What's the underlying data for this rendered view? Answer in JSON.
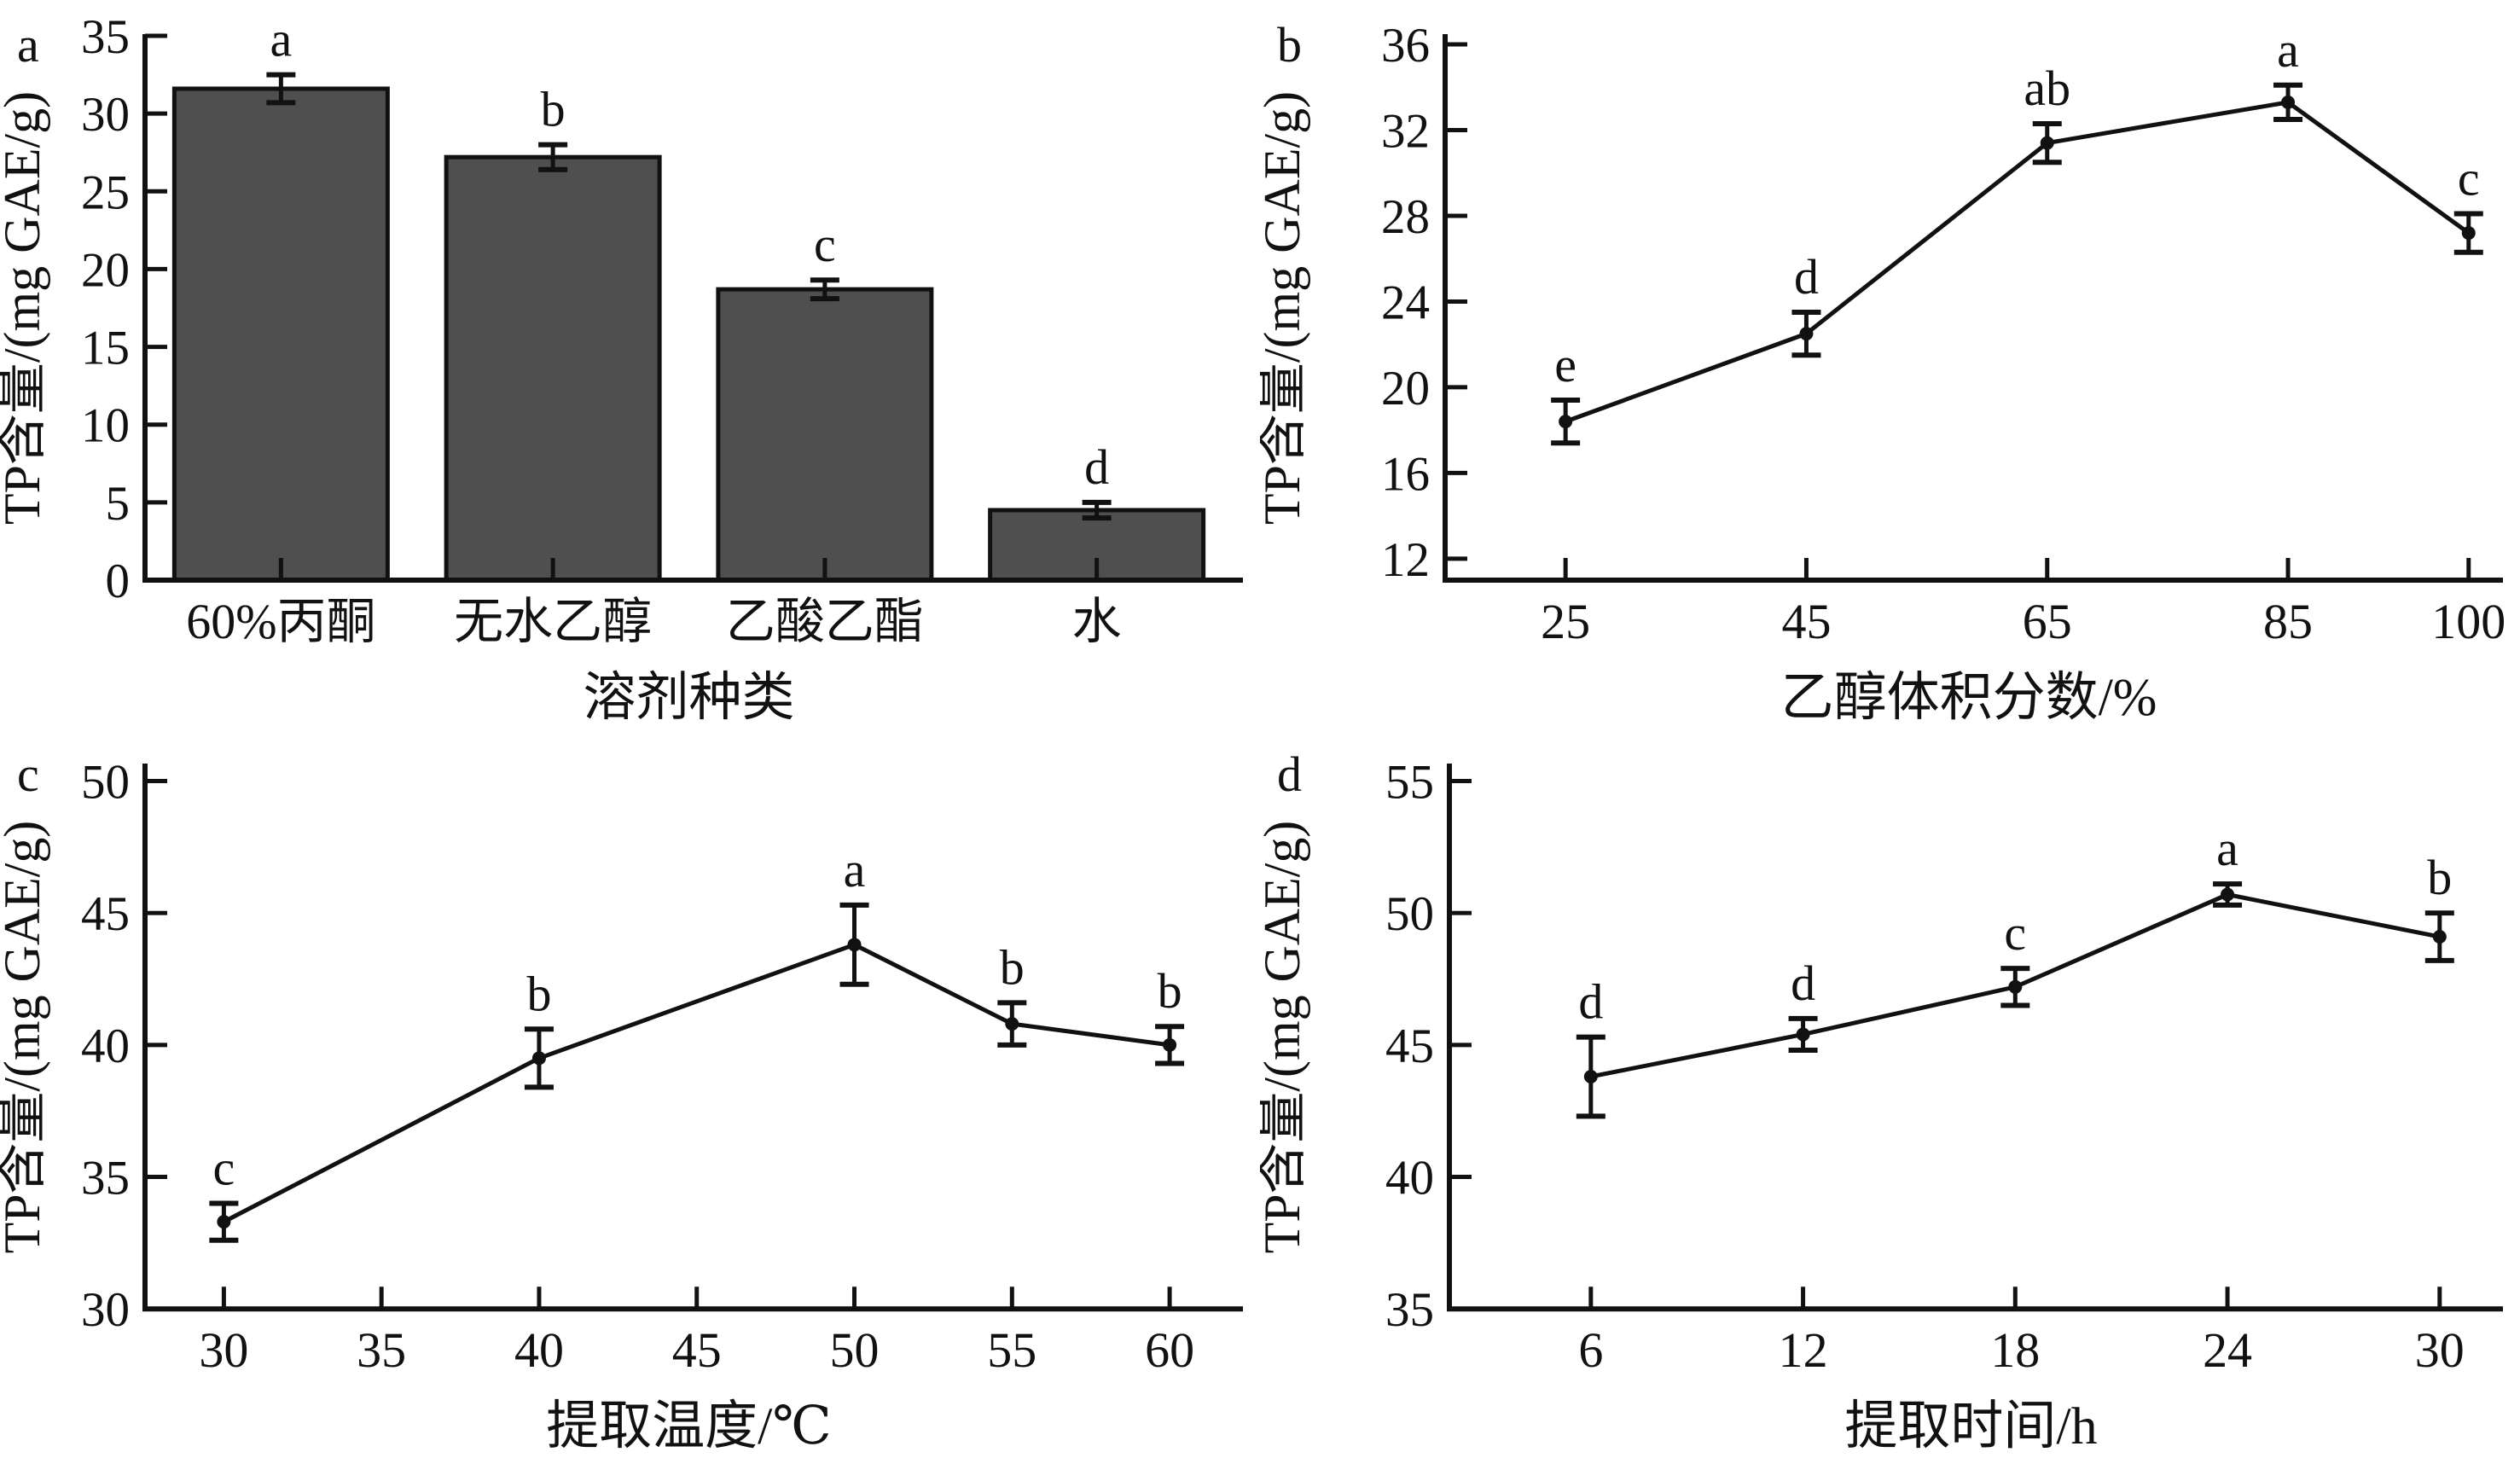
{
  "figure": {
    "background": "#ffffff",
    "ink_color": "#111111",
    "bar_fill": "#4f4f4f",
    "shared_ylabel": "TP含量/(mg GAE/g)"
  },
  "chart_data": [
    {
      "panel_label": "a",
      "type": "bar",
      "title": "",
      "ylabel": "TP含量/(mg GAE/g)",
      "xlabel": "溶剂种类",
      "categories": [
        "60%丙酮",
        "无水乙醇",
        "乙酸乙酯",
        "水"
      ],
      "values": [
        31.6,
        27.2,
        18.7,
        4.5
      ],
      "errors": [
        0.9,
        0.8,
        0.6,
        0.5
      ],
      "sig_letters": [
        "a",
        "b",
        "c",
        "d"
      ],
      "yticks": [
        0,
        5,
        10,
        15,
        20,
        25,
        30,
        35
      ],
      "ylim": [
        0,
        35
      ],
      "grid": false,
      "legend": "none"
    },
    {
      "panel_label": "b",
      "type": "line",
      "title": "",
      "ylabel": "TP含量/(mg GAE/g)",
      "xlabel": "乙醇体积分数/%",
      "x": [
        25,
        45,
        65,
        85,
        100
      ],
      "xticks": [
        25,
        45,
        65,
        85,
        100
      ],
      "xlim": [
        15,
        102
      ],
      "values": [
        18.4,
        22.5,
        31.4,
        33.3,
        27.2
      ],
      "errors": [
        1.0,
        1.0,
        0.9,
        0.8,
        0.9
      ],
      "sig_letters": [
        "e",
        "d",
        "ab",
        "a",
        "c"
      ],
      "yticks": [
        12,
        16,
        20,
        24,
        28,
        32,
        36
      ],
      "ylim": [
        11,
        36.4
      ],
      "grid": false,
      "legend": "none"
    },
    {
      "panel_label": "c",
      "type": "line",
      "title": "",
      "ylabel": "TP含量/(mg GAE/g)",
      "xlabel": "提取温度/℃",
      "x": [
        30,
        40,
        50,
        55,
        60
      ],
      "xticks": [
        30,
        35,
        40,
        45,
        50,
        55,
        60
      ],
      "xlim": [
        27.5,
        62
      ],
      "values": [
        33.3,
        39.5,
        43.8,
        40.8,
        40.0
      ],
      "errors": [
        0.7,
        1.1,
        1.5,
        0.8,
        0.7
      ],
      "sig_letters": [
        "c",
        "b",
        "a",
        "b",
        "b"
      ],
      "yticks": [
        30,
        35,
        40,
        45,
        50
      ],
      "ylim": [
        30,
        50.6
      ],
      "grid": false,
      "legend": "none"
    },
    {
      "panel_label": "d",
      "type": "line",
      "title": "",
      "ylabel": "TP含量/(mg GAE/g)",
      "xlabel": "提取时间/h",
      "x": [
        6,
        12,
        18,
        24,
        30
      ],
      "xticks": [
        6,
        12,
        18,
        24,
        30
      ],
      "xlim": [
        2,
        31.5
      ],
      "values": [
        43.8,
        45.4,
        47.2,
        50.7,
        49.1
      ],
      "errors": [
        1.5,
        0.6,
        0.7,
        0.4,
        0.9
      ],
      "sig_letters": [
        "d",
        "d",
        "c",
        "a",
        "b"
      ],
      "yticks": [
        35,
        40,
        45,
        50,
        55
      ],
      "ylim": [
        35,
        55.6
      ],
      "grid": false,
      "legend": "none"
    }
  ]
}
